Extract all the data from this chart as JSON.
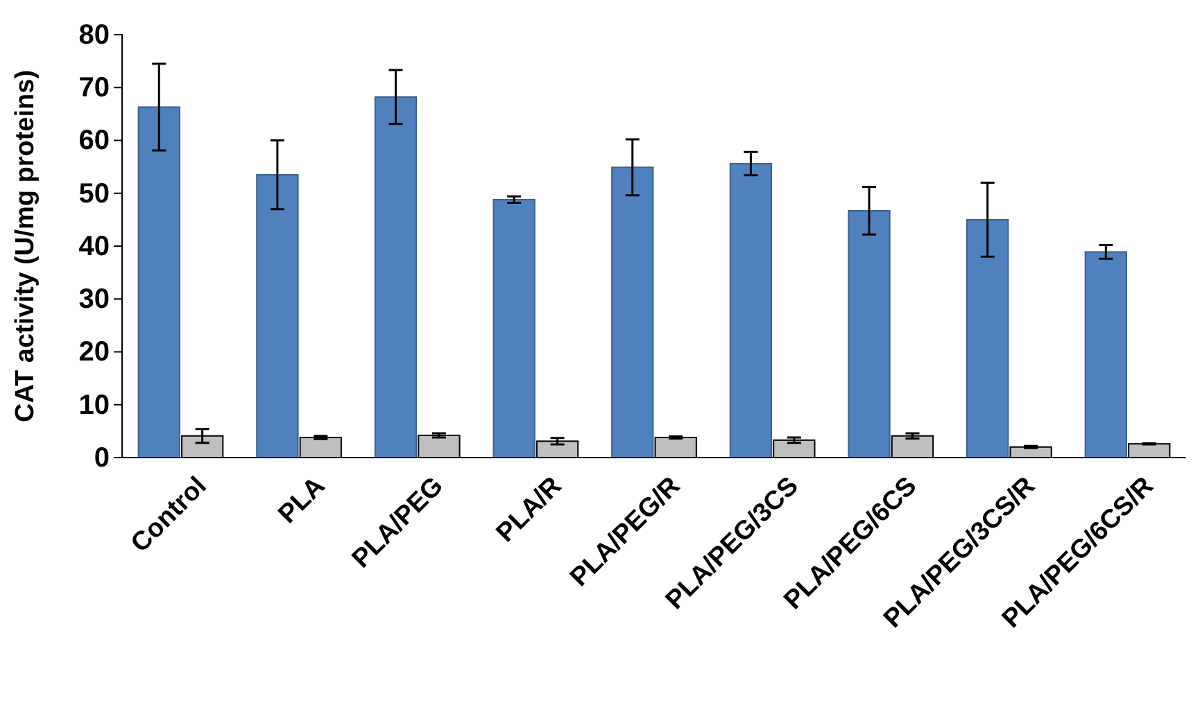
{
  "chart_data": {
    "type": "bar",
    "ylabel": "CAT activity (U/mg proteins)",
    "categories": [
      "Control",
      "PLA",
      "PLA/PEG",
      "PLA/R",
      "PLA/PEG/R",
      "PLA/PEG/3CS",
      "PLA/PEG/6CS",
      "PLA/PEG/3CS/R",
      "PLA/PEG/6CS/R"
    ],
    "series": [
      {
        "color": "#4f81bd",
        "values": [
          66.3,
          53.5,
          68.2,
          48.8,
          54.9,
          55.6,
          46.7,
          45,
          38.9
        ],
        "errors": [
          8.2,
          6.5,
          5.1,
          0.6,
          5.3,
          2.2,
          4.5,
          7,
          1.3
        ]
      },
      {
        "color": "#bfbfbf",
        "values": [
          4.1,
          3.8,
          4.2,
          3.1,
          3.8,
          3.3,
          4.1,
          2.0,
          2.6
        ],
        "errors": [
          1.3,
          0.3,
          0.4,
          0.6,
          0.2,
          0.5,
          0.5,
          0.2,
          0.1
        ]
      }
    ],
    "ylim": [
      0,
      80
    ],
    "yticks": [
      0,
      10,
      20,
      30,
      40,
      50,
      60,
      70,
      80
    ],
    "grid": false
  }
}
